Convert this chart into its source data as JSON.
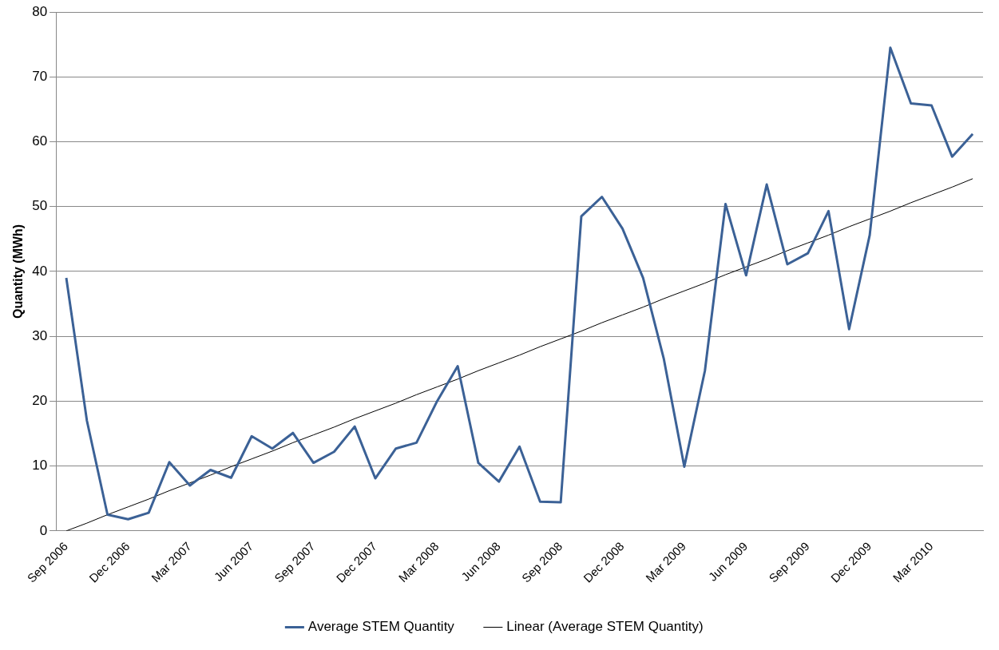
{
  "chart_data": {
    "type": "line",
    "ylabel": "Quantity (MWh)",
    "categories": [
      "Sep 2006",
      null,
      null,
      "Dec 2006",
      null,
      null,
      "Mar 2007",
      null,
      null,
      "Jun 2007",
      null,
      null,
      "Sep 2007",
      null,
      null,
      "Dec 2007",
      null,
      null,
      "Mar 2008",
      null,
      null,
      "Jun 2008",
      null,
      null,
      "Sep 2008",
      null,
      null,
      "Dec 2008",
      null,
      null,
      "Mar 2009",
      null,
      null,
      "Jun 2009",
      null,
      null,
      "Sep 2009",
      null,
      null,
      "Dec 2009",
      null,
      null,
      "Mar 2010",
      null,
      null
    ],
    "series": [
      {
        "name": "Average STEM Quantity",
        "color": "#3b6196",
        "values": [
          39,
          17,
          2.5,
          1.8,
          2.8,
          10.6,
          7,
          9.4,
          8.2,
          14.6,
          12.7,
          15.1,
          10.5,
          12.2,
          16.1,
          8.1,
          12.7,
          13.6,
          20,
          25.4,
          10.5,
          7.6,
          13,
          4.5,
          4.4,
          48.5,
          51.5,
          46.6,
          39,
          26.6,
          9.9,
          24.7,
          50.4,
          39.4,
          53.4,
          41.1,
          42.8,
          49.3,
          31.1,
          45.6,
          74.5,
          65.9,
          65.6,
          57.7,
          61.2
        ]
      },
      {
        "name": "Linear (Average STEM Quantity)",
        "color": "#000000",
        "values": [
          0,
          1.2,
          2.5,
          3.7,
          4.9,
          6.2,
          7.4,
          8.6,
          9.9,
          11.1,
          12.3,
          13.6,
          14.8,
          16,
          17.3,
          18.5,
          19.7,
          21,
          22.2,
          23.4,
          24.7,
          25.9,
          27.1,
          28.4,
          29.6,
          30.8,
          32.1,
          33.3,
          34.5,
          35.8,
          37,
          38.2,
          39.5,
          40.7,
          41.9,
          43.2,
          44.4,
          45.6,
          46.9,
          48.1,
          49.3,
          50.6,
          51.8,
          53,
          54.3
        ]
      }
    ],
    "ylim": [
      0,
      80
    ],
    "yticks": [
      0,
      10,
      20,
      30,
      40,
      50,
      60,
      70,
      80
    ],
    "grid": "y",
    "legend": "bottom",
    "marker": "none",
    "line_style": "solid"
  }
}
